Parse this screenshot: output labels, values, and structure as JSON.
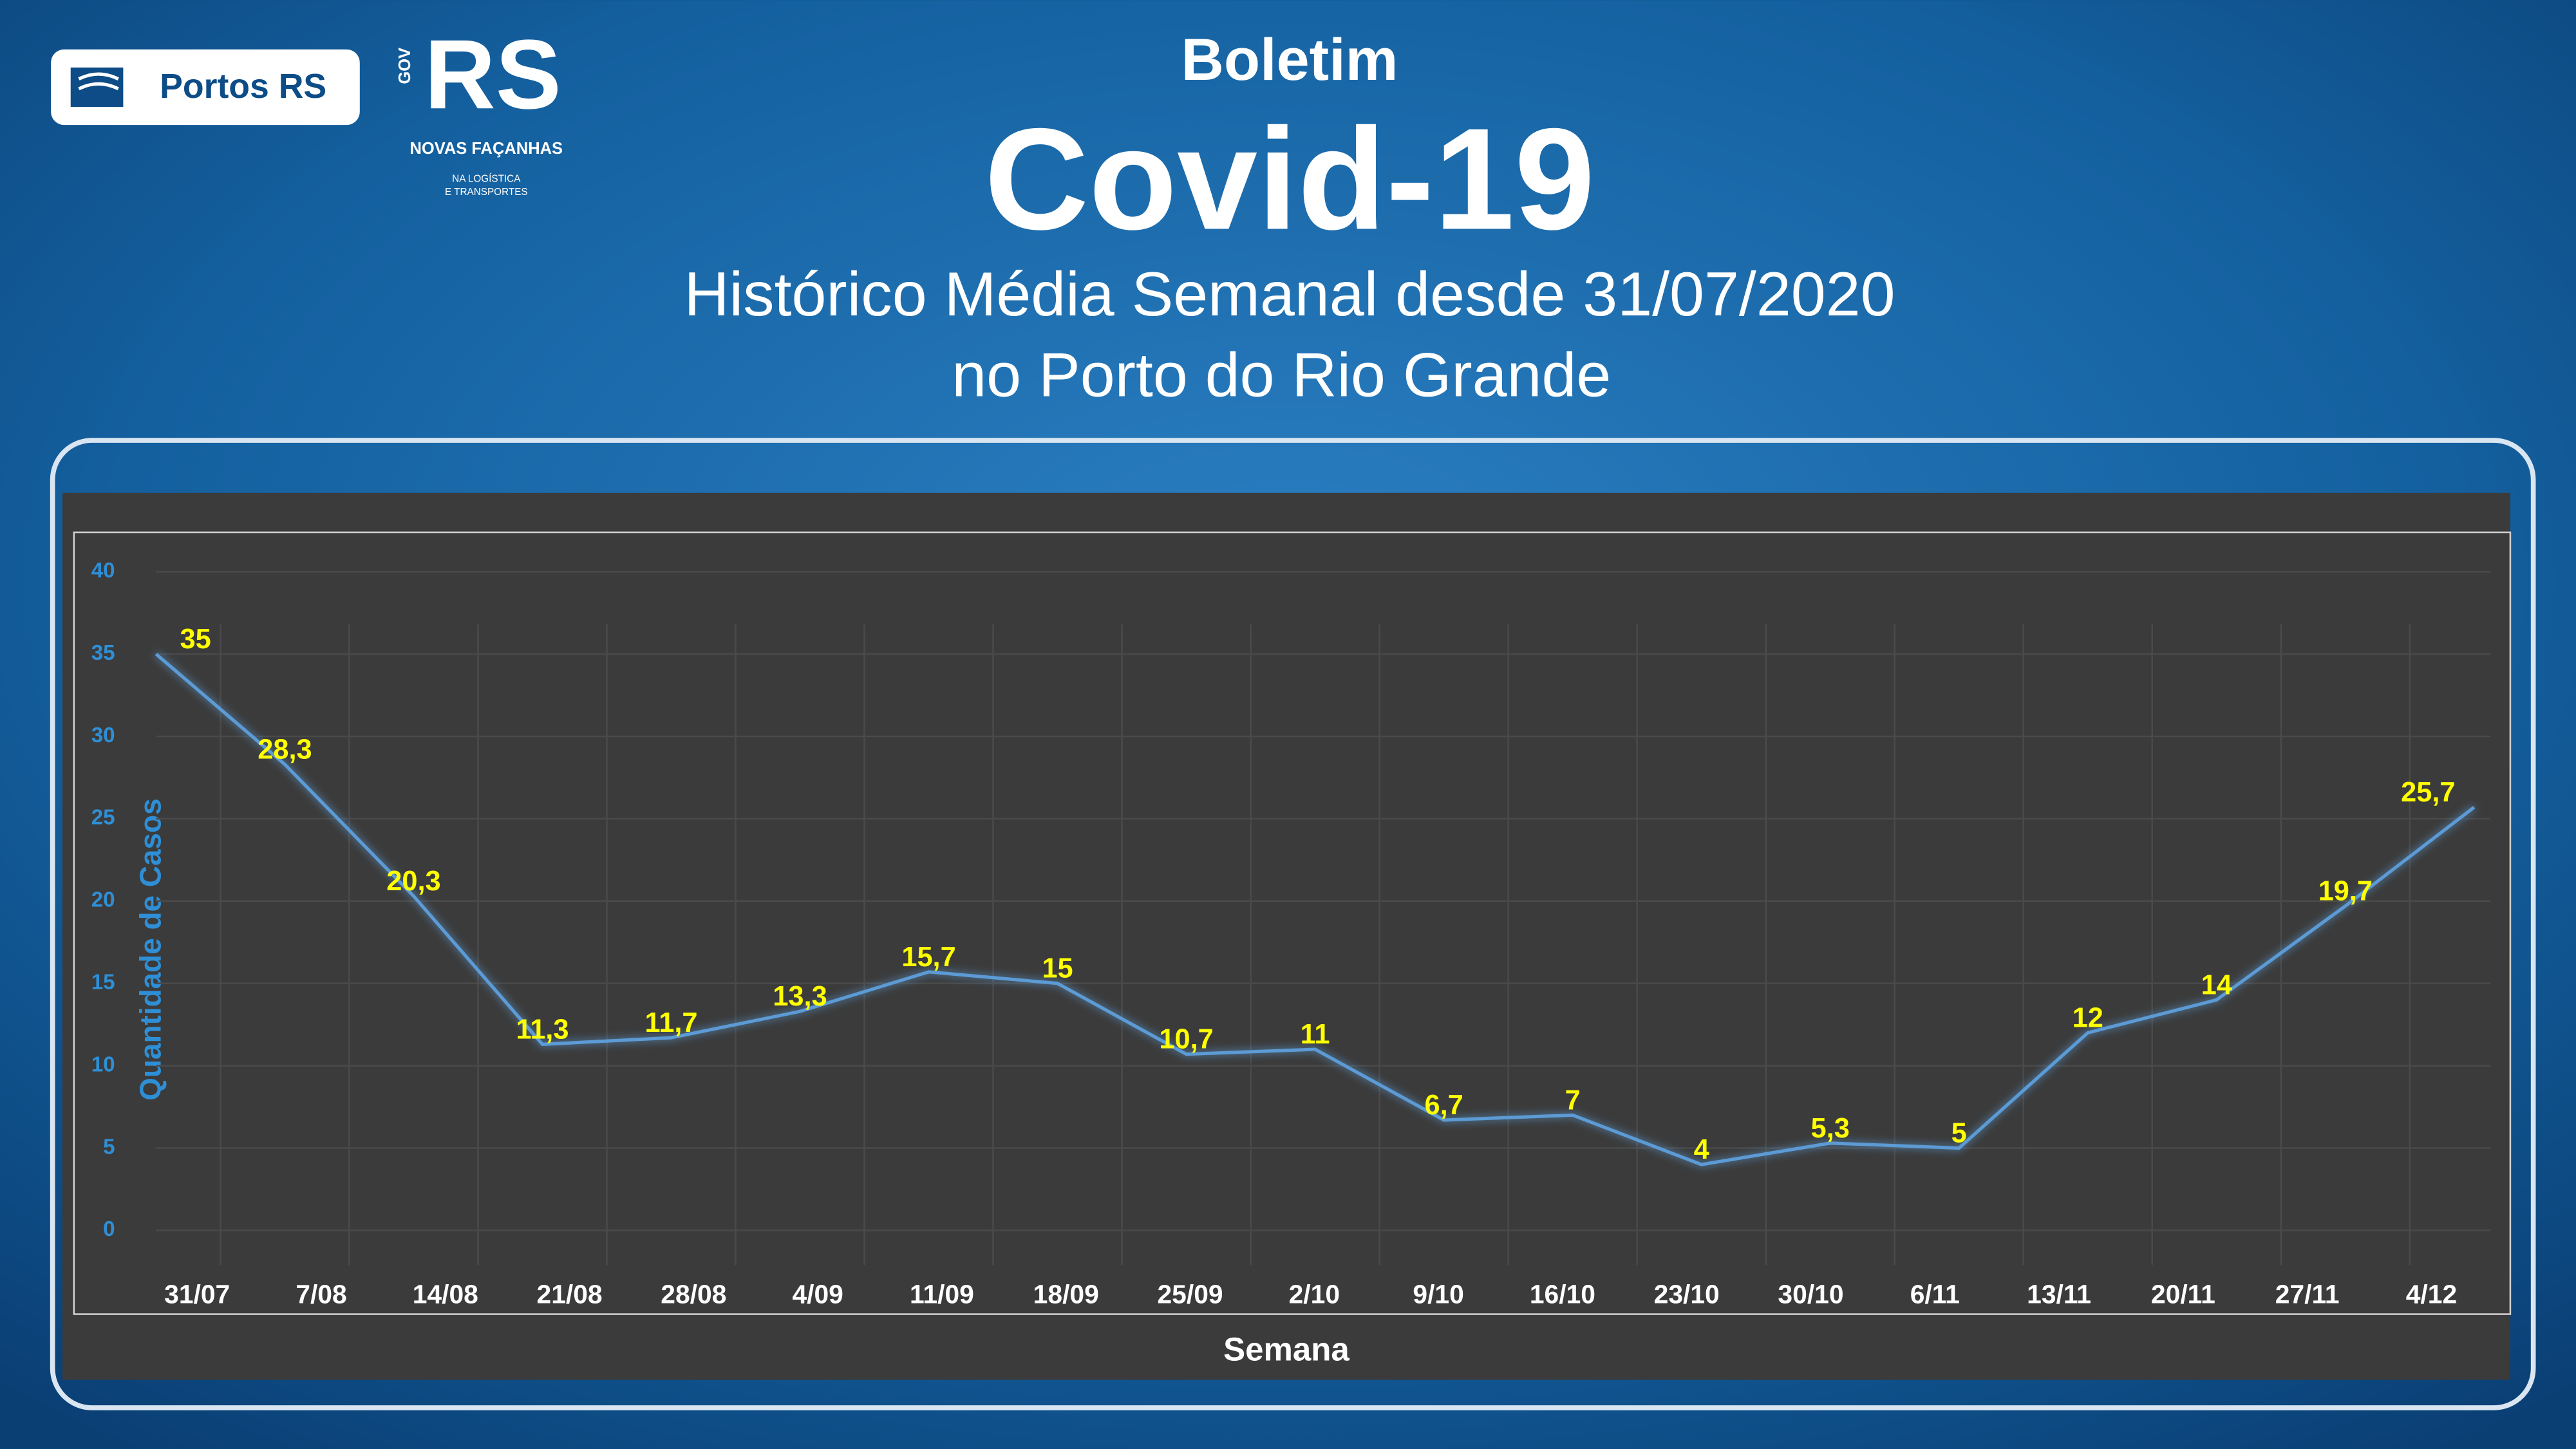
{
  "header": {
    "brand": "Portos RS",
    "gov": "GOV",
    "rs": "RS",
    "slogan": "NOVAS FAÇANHAS",
    "slogan_sub1": "NA LOGÍSTICA",
    "slogan_sub2": "E TRANSPORTES"
  },
  "chart_data": {
    "type": "line",
    "supertitle": "Boletim",
    "title": "Covid-19",
    "subtitle": "Histórico Média Semanal desde 31/07/2020",
    "subtitle2": "no Porto do Rio Grande",
    "x_label": "Semana",
    "y_label": "Quantidade de Casos",
    "categories": [
      "31/07",
      "7/08",
      "14/08",
      "21/08",
      "28/08",
      "4/09",
      "11/09",
      "18/09",
      "25/09",
      "2/10",
      "9/10",
      "16/10",
      "23/10",
      "30/10",
      "6/11",
      "13/11",
      "20/11",
      "27/11",
      "4/12"
    ],
    "series": [
      {
        "name": "Quantidade de Casos",
        "color": "#5b9bd5",
        "values": [
          35,
          28.3,
          20.3,
          11.3,
          11.7,
          13.3,
          15.7,
          15,
          10.7,
          11,
          6.7,
          7,
          4,
          5.3,
          5,
          12,
          14,
          19.7,
          25.7
        ],
        "value_labels": [
          "35",
          "28,3",
          "20,3",
          "11,3",
          "11,7",
          "13,3",
          "15,7",
          "15",
          "10,7",
          "11",
          "6,7",
          "7",
          "4",
          "5,3",
          "5",
          "12",
          "14",
          "19,7",
          "25,7"
        ]
      }
    ],
    "ylim": [
      0,
      40
    ],
    "yticks": [
      0,
      5,
      10,
      15,
      20,
      25,
      30,
      35,
      40
    ],
    "grid": true,
    "label_color": "#ffff00"
  }
}
